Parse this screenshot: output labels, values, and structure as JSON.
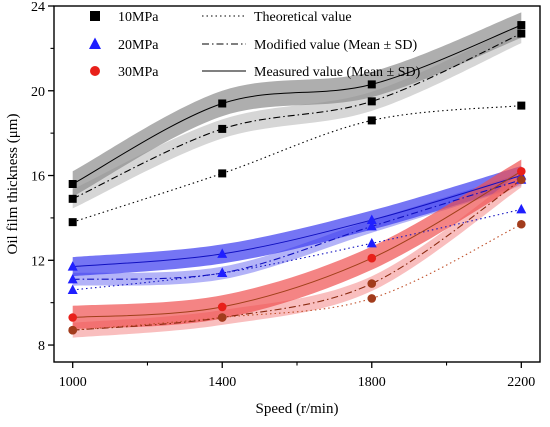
{
  "chart_data": {
    "type": "line",
    "title": "",
    "xlabel": "Speed (r/min)",
    "ylabel": "Oil film thickness (μm)",
    "xlim": [
      950,
      2250
    ],
    "ylim": [
      7.2,
      24
    ],
    "x": [
      1000,
      1400,
      1800,
      2200
    ],
    "xticks": [
      "1000",
      "1400",
      "1800",
      "2200"
    ],
    "yticks": [
      "8",
      "12",
      "16",
      "20",
      "24"
    ],
    "grid": false,
    "legend": {
      "placement": "top-left",
      "pressure_entries": [
        "10MPa",
        "20MPa",
        "30MPa"
      ],
      "style_entries": [
        "Theoretical value",
        "Modified value (Mean ± SD)",
        "Measured value (Mean ± SD)"
      ]
    },
    "series": [
      {
        "pressure": "10MPa",
        "color": "#808080",
        "band_color": "#8c8c8c",
        "band_color_light": "#c8c8c8",
        "marker": "square",
        "marker_color": "#000000",
        "theoretical": [
          13.8,
          16.1,
          18.6,
          19.3
        ],
        "modified": [
          14.9,
          18.2,
          19.5,
          22.7
        ],
        "measured": [
          15.6,
          19.4,
          20.3,
          23.1
        ],
        "modified_sd": 0.45,
        "measured_sd": 0.6
      },
      {
        "pressure": "20MPa",
        "color": "#0000ff",
        "band_color": "#3a3af0",
        "band_color_light": "#9a9af5",
        "marker": "triangle",
        "marker_color": "#1f1fff",
        "theoretical": [
          10.6,
          11.4,
          12.8,
          14.4
        ],
        "modified": [
          11.1,
          11.4,
          13.6,
          15.8
        ],
        "measured": [
          11.7,
          12.3,
          13.9,
          16.0
        ],
        "modified_sd": 0.3,
        "measured_sd": 0.45
      },
      {
        "pressure": "30MPa",
        "color": "#ff0000",
        "band_color": "#f05050",
        "band_color_light": "#f7a8a8",
        "marker": "circle",
        "marker_color": "#e8201a",
        "theoretical": [
          8.7,
          9.3,
          10.2,
          13.7
        ],
        "modified": [
          8.7,
          9.3,
          10.9,
          15.8
        ],
        "measured": [
          9.3,
          9.8,
          12.1,
          16.2
        ],
        "modified_sd": 0.35,
        "measured_sd": 0.55
      }
    ]
  }
}
